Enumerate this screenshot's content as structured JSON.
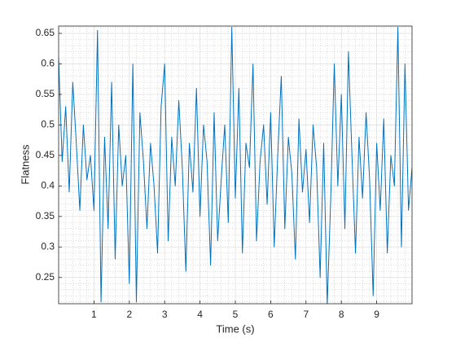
{
  "chart_data": {
    "type": "line",
    "xlabel": "Time (s)",
    "ylabel": "Flatness",
    "x": [
      0,
      0.1,
      0.2,
      0.3,
      0.4,
      0.5,
      0.6,
      0.7,
      0.8,
      0.9,
      1,
      1.1,
      1.2,
      1.3,
      1.4,
      1.5,
      1.6,
      1.7,
      1.8,
      1.9,
      2,
      2.1,
      2.2,
      2.3,
      2.4,
      2.5,
      2.6,
      2.7,
      2.8,
      2.9,
      3,
      3.1,
      3.2,
      3.3,
      3.4,
      3.5,
      3.6,
      3.7,
      3.8,
      3.9,
      4,
      4.1,
      4.2,
      4.3,
      4.4,
      4.5,
      4.6,
      4.7,
      4.8,
      4.9,
      5,
      5.1,
      5.2,
      5.3,
      5.4,
      5.5,
      5.6,
      5.7,
      5.8,
      5.9,
      6,
      6.1,
      6.2,
      6.3,
      6.4,
      6.5,
      6.6,
      6.7,
      6.8,
      6.9,
      7,
      7.1,
      7.2,
      7.3,
      7.4,
      7.5,
      7.6,
      7.7,
      7.8,
      7.9,
      8,
      8.1,
      8.2,
      8.3,
      8.4,
      8.5,
      8.6,
      8.7,
      8.8,
      8.9,
      9,
      9.1,
      9.2,
      9.3,
      9.4,
      9.5,
      9.6,
      9.7,
      9.8,
      9.9,
      10
    ],
    "series": [
      {
        "color": "#0072bd",
        "values": [
          0.61,
          0.44,
          0.53,
          0.39,
          0.57,
          0.47,
          0.36,
          0.5,
          0.41,
          0.45,
          0.36,
          0.655,
          0.21,
          0.48,
          0.33,
          0.57,
          0.28,
          0.5,
          0.4,
          0.45,
          0.24,
          0.6,
          0.21,
          0.52,
          0.44,
          0.33,
          0.47,
          0.4,
          0.29,
          0.53,
          0.6,
          0.31,
          0.48,
          0.4,
          0.54,
          0.43,
          0.26,
          0.47,
          0.39,
          0.56,
          0.35,
          0.5,
          0.44,
          0.27,
          0.52,
          0.31,
          0.41,
          0.5,
          0.34,
          0.66,
          0.38,
          0.56,
          0.29,
          0.47,
          0.43,
          0.6,
          0.31,
          0.44,
          0.5,
          0.37,
          0.52,
          0.3,
          0.45,
          0.58,
          0.33,
          0.48,
          0.42,
          0.28,
          0.51,
          0.39,
          0.46,
          0.34,
          0.5,
          0.43,
          0.25,
          0.47,
          0.205,
          0.38,
          0.6,
          0.4,
          0.55,
          0.33,
          0.62,
          0.45,
          0.29,
          0.48,
          0.38,
          0.52,
          0.41,
          0.22,
          0.47,
          0.36,
          0.51,
          0.29,
          0.45,
          0.4,
          0.66,
          0.3,
          0.6,
          0.36,
          0.43
        ]
      }
    ],
    "xlim": [
      0,
      10
    ],
    "ylim": [
      0.207,
      0.662
    ],
    "xticks": [
      1,
      2,
      3,
      4,
      5,
      6,
      7,
      8,
      9
    ],
    "yticks": [
      0.25,
      0.3,
      0.35,
      0.4,
      0.45,
      0.5,
      0.55,
      0.6,
      0.65
    ],
    "xminorticks": [
      0.2,
      0.4,
      0.6,
      0.8,
      1.2,
      1.4,
      1.6,
      1.8,
      2.2,
      2.4,
      2.6,
      2.8,
      3.2,
      3.4,
      3.6,
      3.8,
      4.2,
      4.4,
      4.6,
      4.8,
      5.2,
      5.4,
      5.6,
      5.8,
      6.2,
      6.4,
      6.6,
      6.8,
      7.2,
      7.4,
      7.6,
      7.8,
      8.2,
      8.4,
      8.6,
      8.8,
      9.2,
      9.4,
      9.6,
      9.8
    ],
    "yminorticks": [
      0.21,
      0.22,
      0.23,
      0.24,
      0.26,
      0.27,
      0.28,
      0.29,
      0.31,
      0.32,
      0.33,
      0.34,
      0.36,
      0.37,
      0.38,
      0.39,
      0.41,
      0.42,
      0.43,
      0.44,
      0.46,
      0.47,
      0.48,
      0.49,
      0.51,
      0.52,
      0.53,
      0.54,
      0.56,
      0.57,
      0.58,
      0.59,
      0.61,
      0.62,
      0.63,
      0.64,
      0.66
    ],
    "grid": true,
    "minor_grid": true
  }
}
